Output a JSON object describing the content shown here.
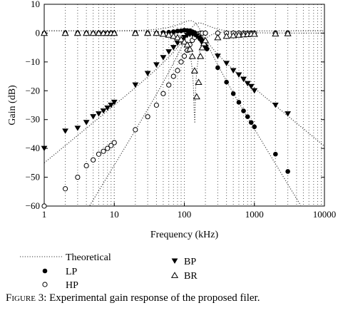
{
  "chart_data": {
    "type": "scatter",
    "title": "",
    "xlabel": "Frequency (kHz)",
    "ylabel": "Gain (dB)",
    "xscale": "log",
    "xlim": [
      1,
      10000
    ],
    "ylim": [
      -60,
      10
    ],
    "x_ticks": [
      1,
      10,
      100,
      1000,
      10000
    ],
    "x_tick_labels": [
      "1",
      "10",
      "100",
      "1000",
      "10000"
    ],
    "y_ticks": [
      10,
      0,
      -10,
      -20,
      -30,
      -40,
      -50,
      -60
    ],
    "y_tick_labels": [
      "10",
      "0",
      "−10",
      "−20",
      "−30",
      "−40",
      "−50",
      "−60"
    ],
    "grid": "vertical dotted minor lines",
    "legend": [
      {
        "label": "Theoretical",
        "marker": "dotted-line"
      },
      {
        "label": "LP",
        "marker": "filled-circle"
      },
      {
        "label": "HP",
        "marker": "open-circle"
      },
      {
        "label": "BP",
        "marker": "filled-triangle-down"
      },
      {
        "label": "BR",
        "marker": "open-triangle-up"
      }
    ],
    "series": [
      {
        "name": "LP",
        "marker": "filled-circle",
        "points": [
          [
            1,
            0
          ],
          [
            2,
            0
          ],
          [
            3,
            0
          ],
          [
            4,
            0
          ],
          [
            5,
            0
          ],
          [
            6,
            0
          ],
          [
            7,
            0
          ],
          [
            8,
            0
          ],
          [
            9,
            0
          ],
          [
            10,
            0
          ],
          [
            20,
            0
          ],
          [
            30,
            0
          ],
          [
            40,
            0
          ],
          [
            50,
            0.2
          ],
          [
            60,
            0.3
          ],
          [
            70,
            0.5
          ],
          [
            80,
            0.7
          ],
          [
            90,
            0.8
          ],
          [
            100,
            1.0
          ],
          [
            110,
            0.9
          ],
          [
            120,
            0.8
          ],
          [
            130,
            0.5
          ],
          [
            140,
            0.2
          ],
          [
            150,
            -0.3
          ],
          [
            160,
            -1
          ],
          [
            170,
            -1.8
          ],
          [
            180,
            -2.6
          ],
          [
            190,
            -3.5
          ],
          [
            200,
            -4.5
          ],
          [
            210,
            -5.5
          ],
          [
            300,
            -12
          ],
          [
            400,
            -17
          ],
          [
            500,
            -21
          ],
          [
            600,
            -24
          ],
          [
            700,
            -27
          ],
          [
            800,
            -29
          ],
          [
            900,
            -31
          ],
          [
            1000,
            -32.5
          ],
          [
            2000,
            -42
          ],
          [
            3000,
            -48
          ]
        ]
      },
      {
        "name": "HP",
        "marker": "open-circle",
        "points": [
          [
            1,
            -60
          ],
          [
            2,
            -54
          ],
          [
            3,
            -50
          ],
          [
            4,
            -46
          ],
          [
            5,
            -44
          ],
          [
            6,
            -42
          ],
          [
            7,
            -41
          ],
          [
            8,
            -40
          ],
          [
            9,
            -39
          ],
          [
            10,
            -38
          ],
          [
            20,
            -33.5
          ],
          [
            30,
            -29
          ],
          [
            40,
            -25
          ],
          [
            50,
            -21
          ],
          [
            60,
            -18
          ],
          [
            70,
            -15
          ],
          [
            80,
            -13
          ],
          [
            90,
            -10
          ],
          [
            100,
            -8
          ],
          [
            110,
            -6
          ],
          [
            120,
            -4
          ],
          [
            130,
            -2.5
          ],
          [
            140,
            -1.5
          ],
          [
            150,
            -0.7
          ],
          [
            160,
            -0.3
          ],
          [
            170,
            0
          ],
          [
            180,
            0
          ],
          [
            200,
            0
          ],
          [
            300,
            0
          ],
          [
            400,
            0
          ],
          [
            500,
            0
          ],
          [
            600,
            0
          ],
          [
            700,
            0
          ],
          [
            800,
            0
          ],
          [
            900,
            0
          ],
          [
            1000,
            0
          ],
          [
            2000,
            0
          ],
          [
            3000,
            0
          ]
        ]
      },
      {
        "name": "BP",
        "marker": "filled-triangle-down",
        "points": [
          [
            1,
            -40
          ],
          [
            2,
            -34
          ],
          [
            3,
            -33
          ],
          [
            4,
            -31
          ],
          [
            5,
            -29
          ],
          [
            6,
            -28
          ],
          [
            7,
            -27
          ],
          [
            8,
            -26
          ],
          [
            9,
            -25
          ],
          [
            10,
            -24
          ],
          [
            20,
            -18
          ],
          [
            30,
            -14
          ],
          [
            40,
            -11
          ],
          [
            50,
            -8.5
          ],
          [
            60,
            -6.5
          ],
          [
            70,
            -5
          ],
          [
            80,
            -3.5
          ],
          [
            90,
            -2.5
          ],
          [
            100,
            -1.5
          ],
          [
            110,
            -0.8
          ],
          [
            120,
            -0.5
          ],
          [
            130,
            -0.3
          ],
          [
            140,
            -0.5
          ],
          [
            150,
            -1
          ],
          [
            160,
            -1.8
          ],
          [
            170,
            -2.5
          ],
          [
            180,
            -3.5
          ],
          [
            190,
            -4.5
          ],
          [
            200,
            -5
          ],
          [
            300,
            -8
          ],
          [
            400,
            -10.5
          ],
          [
            500,
            -13
          ],
          [
            600,
            -14.5
          ],
          [
            700,
            -16
          ],
          [
            800,
            -17.5
          ],
          [
            900,
            -18.5
          ],
          [
            1000,
            -20
          ],
          [
            2000,
            -25
          ],
          [
            3000,
            -28
          ]
        ]
      },
      {
        "name": "BR",
        "marker": "open-triangle-up",
        "points": [
          [
            1,
            0
          ],
          [
            2,
            0
          ],
          [
            3,
            0
          ],
          [
            4,
            0
          ],
          [
            5,
            0
          ],
          [
            6,
            0
          ],
          [
            7,
            0
          ],
          [
            8,
            0
          ],
          [
            9,
            0
          ],
          [
            10,
            0
          ],
          [
            20,
            0
          ],
          [
            30,
            0
          ],
          [
            40,
            0
          ],
          [
            50,
            -0.3
          ],
          [
            60,
            -0.6
          ],
          [
            70,
            -1
          ],
          [
            80,
            -1.5
          ],
          [
            90,
            -2.2
          ],
          [
            100,
            -3
          ],
          [
            110,
            -4
          ],
          [
            120,
            -5.5
          ],
          [
            130,
            -8
          ],
          [
            140,
            -13
          ],
          [
            150,
            -22
          ],
          [
            160,
            -17
          ],
          [
            170,
            -8
          ],
          [
            180,
            -5
          ],
          [
            190,
            -3.5
          ],
          [
            200,
            -2.5
          ],
          [
            300,
            -1.5
          ],
          [
            400,
            -1
          ],
          [
            500,
            -0.8
          ],
          [
            600,
            -0.6
          ],
          [
            700,
            -0.5
          ],
          [
            800,
            -0.4
          ],
          [
            900,
            -0.3
          ],
          [
            1000,
            -0.3
          ],
          [
            2000,
            -0.2
          ],
          [
            3000,
            -0.1
          ]
        ]
      }
    ]
  },
  "caption": {
    "label": "Figure 3:",
    "text": " Experimental gain response of the proposed filer."
  }
}
